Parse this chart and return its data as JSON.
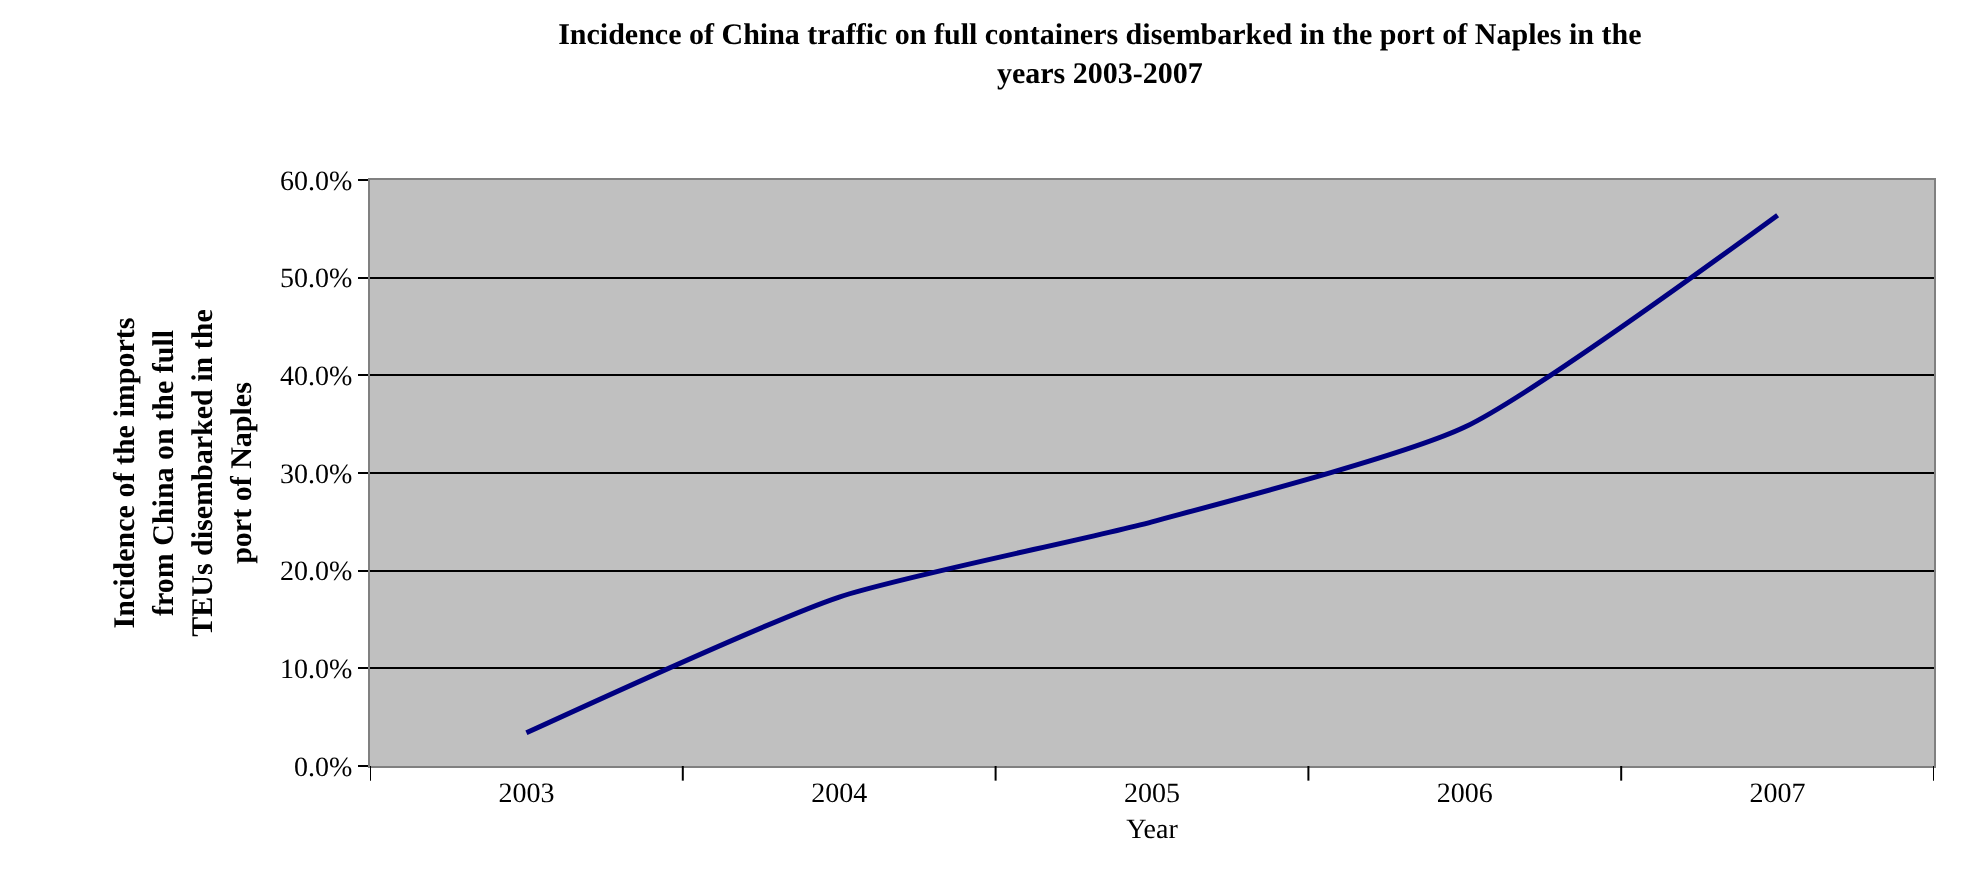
{
  "chart_data": {
    "type": "line",
    "title": "Incidence of China traffic on full containers disembarked in the port of Naples in the years 2003-2007",
    "xlabel": "Year",
    "ylabel": "Incidence of the imports from China on the full TEUs disembarked in the port of Naples",
    "categories": [
      "2003",
      "2004",
      "2005",
      "2006",
      "2007"
    ],
    "series": [
      {
        "color": "#000080",
        "values": [
          3.4,
          17.3,
          25.0,
          34.7,
          56.4
        ]
      }
    ],
    "ylim": [
      0,
      60
    ],
    "yticks": [
      {
        "value": 0,
        "label": "0.0%"
      },
      {
        "value": 10,
        "label": "10.0%"
      },
      {
        "value": 20,
        "label": "20.0%"
      },
      {
        "value": 30,
        "label": "30.0%"
      },
      {
        "value": 40,
        "label": "40.0%"
      },
      {
        "value": 50,
        "label": "50.0%"
      },
      {
        "value": 60,
        "label": "60.0%"
      }
    ],
    "grid": "y",
    "marker": "none",
    "line_style": "solid"
  }
}
